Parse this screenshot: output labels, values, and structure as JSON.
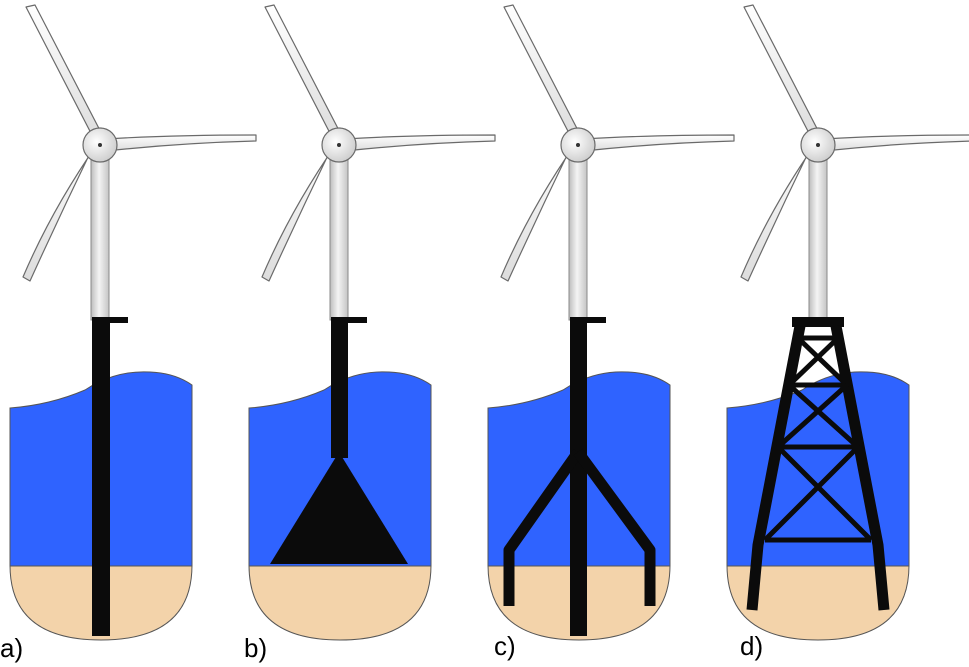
{
  "colors": {
    "water": "#2f63ff",
    "seabed": "#f3d3aa",
    "structure": "#0b0b0b",
    "tower": "#e2e2e2",
    "blade": "#f2f2f2",
    "outline": "#555555"
  },
  "panels": [
    {
      "id": "a",
      "label": "a)",
      "foundation": "monopile"
    },
    {
      "id": "b",
      "label": "b)",
      "foundation": "gravity-base"
    },
    {
      "id": "c",
      "label": "c)",
      "foundation": "tripod"
    },
    {
      "id": "d",
      "label": "d)",
      "foundation": "jacket"
    }
  ]
}
